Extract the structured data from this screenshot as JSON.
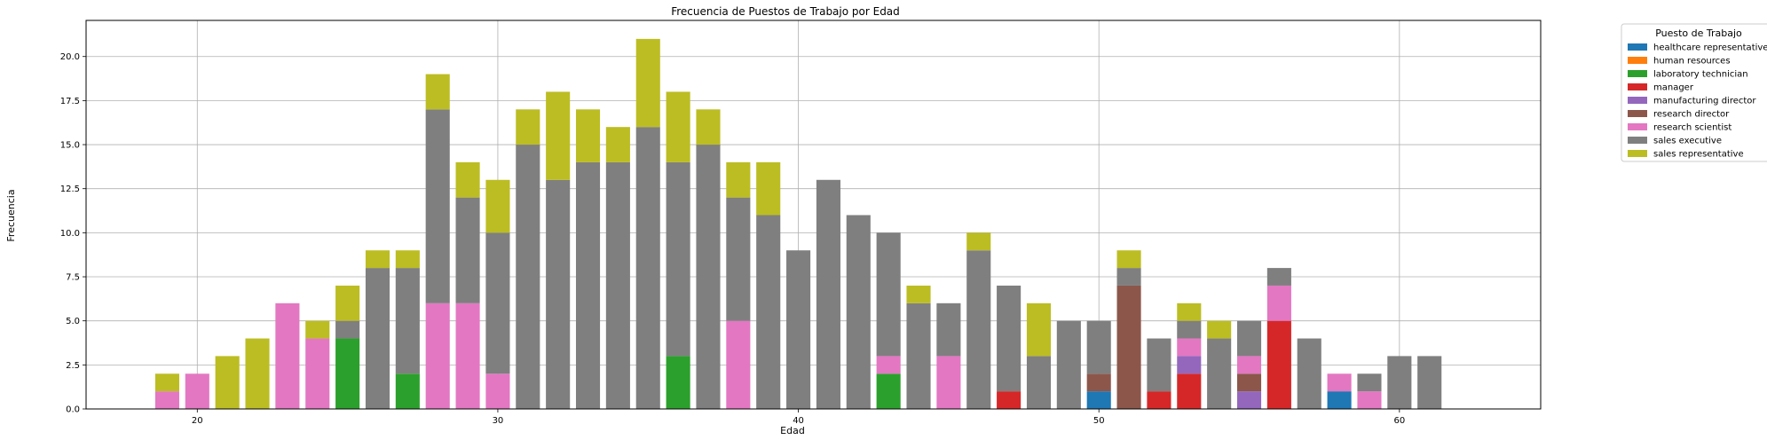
{
  "chart_data": {
    "type": "bar",
    "stacked": true,
    "title": "Frecuencia de Puestos de Trabajo por Edad",
    "xlabel": "Edad",
    "ylabel": "Frecuencia",
    "xlim": [
      16.3,
      64.7
    ],
    "ylim": [
      0,
      22.05
    ],
    "xticks": [
      20,
      30,
      40,
      50,
      60
    ],
    "yticks": [
      0.0,
      2.5,
      5.0,
      7.5,
      10.0,
      12.5,
      15.0,
      17.5,
      20.0
    ],
    "xtick_labels": [
      "20",
      "30",
      "40",
      "50",
      "60"
    ],
    "ytick_labels": [
      "0.0",
      "2.5",
      "5.0",
      "7.5",
      "10.0",
      "12.5",
      "15.0",
      "17.5",
      "20.0"
    ],
    "grid": true,
    "legend_position": "outside upper-right",
    "legend_title": "Puesto de Trabajo",
    "series": [
      {
        "name": "healthcare representative",
        "color": "#1f77b4",
        "segments": [
          [
            50,
            1
          ],
          [
            58,
            1
          ]
        ]
      },
      {
        "name": "human resources",
        "color": "#ff7f0e",
        "segments": []
      },
      {
        "name": "laboratory technician",
        "color": "#2ca02c",
        "segments": [
          [
            25,
            4
          ],
          [
            27,
            2
          ],
          [
            36,
            3
          ],
          [
            43,
            2
          ]
        ]
      },
      {
        "name": "manager",
        "color": "#d62728",
        "segments": [
          [
            47,
            1
          ],
          [
            52,
            1
          ],
          [
            53,
            2
          ],
          [
            56,
            5
          ]
        ]
      },
      {
        "name": "manufacturing director",
        "color": "#9467bd",
        "segments": [
          [
            53,
            1
          ],
          [
            55,
            1
          ]
        ]
      },
      {
        "name": "research director",
        "color": "#8c564b",
        "segments": [
          [
            50,
            1
          ],
          [
            51,
            7
          ],
          [
            55,
            1
          ]
        ]
      },
      {
        "name": "research scientist",
        "color": "#e377c2",
        "segments": [
          [
            19,
            1
          ],
          [
            20,
            2
          ],
          [
            23,
            6
          ],
          [
            24,
            4
          ],
          [
            28,
            6
          ],
          [
            29,
            6
          ],
          [
            30,
            2
          ],
          [
            38,
            5
          ],
          [
            43,
            1
          ],
          [
            45,
            3
          ],
          [
            53,
            1
          ],
          [
            55,
            1
          ],
          [
            56,
            2
          ],
          [
            58,
            1
          ],
          [
            59,
            1
          ]
        ]
      },
      {
        "name": "sales executive",
        "color": "#7f7f7f",
        "segments": [
          [
            25,
            1
          ],
          [
            26,
            8
          ],
          [
            27,
            6
          ],
          [
            28,
            11
          ],
          [
            29,
            6
          ],
          [
            30,
            8
          ],
          [
            31,
            15
          ],
          [
            32,
            13
          ],
          [
            33,
            14
          ],
          [
            34,
            14
          ],
          [
            35,
            16
          ],
          [
            36,
            11
          ],
          [
            37,
            15
          ],
          [
            38,
            7
          ],
          [
            39,
            11
          ],
          [
            40,
            9
          ],
          [
            41,
            13
          ],
          [
            42,
            11
          ],
          [
            43,
            7
          ],
          [
            44,
            6
          ],
          [
            45,
            3
          ],
          [
            46,
            9
          ],
          [
            47,
            6
          ],
          [
            48,
            3
          ],
          [
            49,
            5
          ],
          [
            50,
            3
          ],
          [
            51,
            1
          ],
          [
            52,
            3
          ],
          [
            53,
            1
          ],
          [
            54,
            4
          ],
          [
            55,
            2
          ],
          [
            56,
            1
          ],
          [
            57,
            4
          ],
          [
            59,
            1
          ],
          [
            60,
            3
          ],
          [
            61,
            3
          ]
        ]
      },
      {
        "name": "sales representative",
        "color": "#bcbd22",
        "segments": [
          [
            19,
            1
          ],
          [
            21,
            3
          ],
          [
            22,
            4
          ],
          [
            24,
            1
          ],
          [
            25,
            2
          ],
          [
            26,
            1
          ],
          [
            27,
            1
          ],
          [
            28,
            2
          ],
          [
            29,
            2
          ],
          [
            30,
            3
          ],
          [
            31,
            2
          ],
          [
            32,
            5
          ],
          [
            33,
            3
          ],
          [
            34,
            2
          ],
          [
            35,
            5
          ],
          [
            36,
            4
          ],
          [
            37,
            2
          ],
          [
            38,
            2
          ],
          [
            39,
            3
          ],
          [
            44,
            1
          ],
          [
            46,
            1
          ],
          [
            48,
            3
          ],
          [
            51,
            1
          ],
          [
            53,
            1
          ],
          [
            54,
            1
          ]
        ]
      }
    ]
  }
}
